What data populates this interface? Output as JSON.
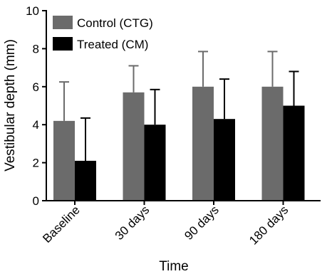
{
  "chart_data": {
    "type": "bar",
    "title": "",
    "xlabel": "Time",
    "ylabel": "Vestibular depth (mm)",
    "categories": [
      "Baseline",
      "30 days",
      "90 days",
      "180 days"
    ],
    "ylim": [
      0,
      10
    ],
    "yticks": [
      0,
      2,
      4,
      6,
      8,
      10
    ],
    "grid": false,
    "legend_position": "top-left",
    "series": [
      {
        "name": "Control (CTG)",
        "color": "#6b6b6b",
        "values": [
          4.2,
          5.7,
          6.0,
          6.0
        ],
        "error": [
          2.05,
          1.4,
          1.85,
          1.85
        ]
      },
      {
        "name": "Treated (CM)",
        "color": "#000000",
        "values": [
          2.1,
          4.0,
          4.3,
          5.0
        ],
        "error": [
          2.25,
          1.85,
          2.1,
          1.8
        ]
      }
    ]
  }
}
